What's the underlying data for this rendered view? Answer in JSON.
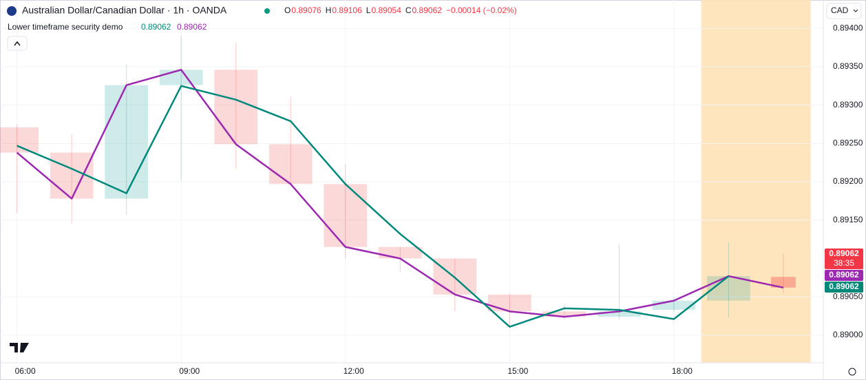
{
  "chart_data": {
    "type": "candlestick",
    "title": "Australian Dollar/Canadian Dollar · 1h · OANDA",
    "ohlc": [
      {
        "label": "O",
        "value": "0.89076"
      },
      {
        "label": "H",
        "value": "0.89106"
      },
      {
        "label": "L",
        "value": "0.89054"
      },
      {
        "label": "C",
        "value": "0.89062"
      }
    ],
    "change": "−0.00014 (−0.02%)",
    "indicator": {
      "name": "Lower timeframe security demo",
      "values": [
        "0.89062",
        "0.89062"
      ]
    },
    "currency": "CAD",
    "x": [
      6,
      7,
      8,
      9,
      10,
      11,
      12,
      13,
      14,
      15,
      16,
      17,
      18,
      19,
      20
    ],
    "open": [
      0.89271,
      0.89238,
      0.89178,
      0.89326,
      0.89346,
      0.89249,
      0.89197,
      0.89115,
      0.891,
      0.89053,
      0.89031,
      0.89024,
      0.89033,
      0.89045,
      0.89076
    ],
    "high": [
      0.89275,
      0.89262,
      0.89353,
      0.8939,
      0.89381,
      0.89311,
      0.89223,
      0.89115,
      0.891,
      0.89053,
      0.8904,
      0.89119,
      0.8905,
      0.89121,
      0.89106
    ],
    "low": [
      0.89159,
      0.89145,
      0.89157,
      0.89202,
      0.89217,
      0.89197,
      0.891,
      0.89082,
      0.89031,
      0.89011,
      0.8902,
      0.8902,
      0.8903,
      0.89023,
      0.89054
    ],
    "close": [
      0.89238,
      0.89178,
      0.89326,
      0.89346,
      0.89249,
      0.89197,
      0.89115,
      0.891,
      0.89053,
      0.89031,
      0.89024,
      0.89031,
      0.89045,
      0.89077,
      0.89062
    ],
    "up_color": "#26a69a",
    "down_color": "#ef5350",
    "series": [
      {
        "color": "#9c27b0",
        "values": [
          0.89238,
          0.89178,
          0.89326,
          0.89346,
          0.89249,
          0.89197,
          0.89115,
          0.891,
          0.89053,
          0.89031,
          0.89024,
          0.89031,
          0.89045,
          0.89077,
          0.89062
        ]
      },
      {
        "color": "#00897b",
        "values": [
          0.89247,
          0.89217,
          0.89185,
          0.89325,
          0.89307,
          0.89279,
          0.89197,
          0.89132,
          0.89075,
          0.89011,
          0.89035,
          0.89033,
          0.89021,
          0.89077,
          null
        ]
      }
    ],
    "highlight_x": [
      18.5,
      20.5
    ],
    "highlight_color": "#ffe0b2",
    "price_tags": [
      {
        "text": "0.89062",
        "countdown": "38:35",
        "color": "#f23645"
      },
      {
        "text": "0.89062",
        "color": "#9c27b0"
      },
      {
        "text": "0.89062",
        "color": "#00897b"
      }
    ],
    "xlim": [
      5.69,
      20.73
    ],
    "xticks": [
      {
        "value": 6,
        "label": "06:00"
      },
      {
        "value": 9,
        "label": "09:00"
      },
      {
        "value": 12,
        "label": "12:00"
      },
      {
        "value": 15,
        "label": "15:00"
      },
      {
        "value": 18,
        "label": "18:00"
      }
    ],
    "ylim": [
      0.88964,
      0.89437
    ],
    "yticks": [
      {
        "value": 0.89,
        "label": "0.89000"
      },
      {
        "value": 0.8905,
        "label": "0.89050"
      },
      {
        "value": 0.8915,
        "label": "0.89150"
      },
      {
        "value": 0.892,
        "label": "0.89200"
      },
      {
        "value": 0.8925,
        "label": "0.89250"
      },
      {
        "value": 0.893,
        "label": "0.89300"
      },
      {
        "value": 0.8935,
        "label": "0.89350"
      },
      {
        "value": 0.894,
        "label": "0.89400"
      }
    ],
    "grid": true
  }
}
